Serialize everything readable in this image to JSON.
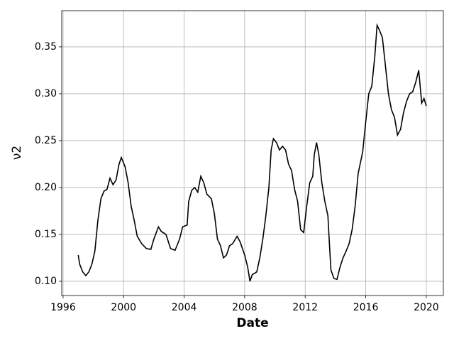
{
  "chart_data": {
    "type": "line",
    "xlabel": "Date",
    "ylabel": "ν2",
    "x": [
      1997.0,
      1997.1,
      1997.3,
      1997.5,
      1997.7,
      1997.9,
      1998.1,
      1998.3,
      1998.5,
      1998.7,
      1998.9,
      1999.1,
      1999.3,
      1999.5,
      1999.7,
      1999.85,
      2000.1,
      2000.3,
      2000.5,
      2000.7,
      2000.9,
      2001.2,
      2001.5,
      2001.8,
      2002.0,
      2002.3,
      2002.5,
      2002.8,
      2003.1,
      2003.4,
      2003.7,
      2003.9,
      2004.2,
      2004.3,
      2004.5,
      2004.7,
      2004.9,
      2005.1,
      2005.3,
      2005.5,
      2005.8,
      2006.0,
      2006.2,
      2006.4,
      2006.6,
      2006.8,
      2007.0,
      2007.2,
      2007.5,
      2007.7,
      2008.0,
      2008.2,
      2008.35,
      2008.5,
      2008.8,
      2009.0,
      2009.2,
      2009.4,
      2009.6,
      2009.75,
      2009.9,
      2010.1,
      2010.3,
      2010.5,
      2010.7,
      2010.9,
      2011.1,
      2011.3,
      2011.5,
      2011.7,
      2011.9,
      2012.1,
      2012.3,
      2012.5,
      2012.6,
      2012.75,
      2012.9,
      2013.1,
      2013.3,
      2013.5,
      2013.6,
      2013.7,
      2013.9,
      2014.1,
      2014.3,
      2014.5,
      2014.7,
      2014.9,
      2015.1,
      2015.3,
      2015.5,
      2015.8,
      2016.0,
      2016.2,
      2016.4,
      2016.6,
      2016.75,
      2016.9,
      2017.1,
      2017.3,
      2017.5,
      2017.7,
      2017.9,
      2018.1,
      2018.3,
      2018.5,
      2018.7,
      2018.9,
      2019.1,
      2019.3,
      2019.5,
      2019.7,
      2019.85,
      2020.0
    ],
    "series": [
      {
        "color": "#000000",
        "values": [
          0.128,
          0.118,
          0.11,
          0.106,
          0.11,
          0.118,
          0.132,
          0.165,
          0.188,
          0.196,
          0.198,
          0.21,
          0.203,
          0.208,
          0.225,
          0.232,
          0.222,
          0.205,
          0.18,
          0.165,
          0.148,
          0.14,
          0.135,
          0.134,
          0.145,
          0.158,
          0.153,
          0.15,
          0.135,
          0.133,
          0.145,
          0.158,
          0.16,
          0.185,
          0.197,
          0.2,
          0.195,
          0.212,
          0.205,
          0.193,
          0.188,
          0.172,
          0.145,
          0.138,
          0.125,
          0.128,
          0.138,
          0.14,
          0.148,
          0.142,
          0.128,
          0.115,
          0.1,
          0.107,
          0.11,
          0.125,
          0.145,
          0.17,
          0.2,
          0.24,
          0.252,
          0.248,
          0.24,
          0.244,
          0.24,
          0.225,
          0.218,
          0.198,
          0.185,
          0.155,
          0.152,
          0.18,
          0.205,
          0.212,
          0.235,
          0.248,
          0.235,
          0.205,
          0.185,
          0.17,
          0.14,
          0.112,
          0.103,
          0.102,
          0.115,
          0.125,
          0.132,
          0.14,
          0.155,
          0.18,
          0.215,
          0.238,
          0.27,
          0.3,
          0.308,
          0.34,
          0.373,
          0.368,
          0.36,
          0.33,
          0.3,
          0.283,
          0.275,
          0.256,
          0.262,
          0.28,
          0.292,
          0.3,
          0.302,
          0.312,
          0.325,
          0.29,
          0.295,
          0.287
        ]
      }
    ],
    "xlim": [
      1995.91,
      2021.13
    ],
    "xticks": [
      1996,
      2000,
      2004,
      2008,
      2012,
      2016,
      2020
    ],
    "ylim": [
      0.0848,
      0.3886
    ],
    "yticks": [
      {
        "value": 0.1,
        "label": "0.10"
      },
      {
        "value": 0.15,
        "label": "0.15"
      },
      {
        "value": 0.2,
        "label": "0.20"
      },
      {
        "value": 0.25,
        "label": "0.25"
      },
      {
        "value": 0.3,
        "label": "0.30"
      },
      {
        "value": 0.35,
        "label": "0.35"
      }
    ],
    "grid": true
  }
}
